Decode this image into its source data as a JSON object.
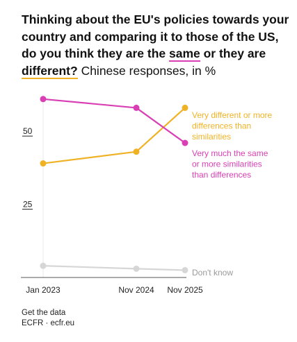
{
  "title": {
    "part1": "Thinking about the EU's policies towards your country and comparing it to those of the US, do you think they are the ",
    "same": "same",
    "or_they_are": " or they are ",
    "different": "different?",
    "subtitle": " Chinese responses, in %"
  },
  "footer": {
    "get_data": "Get the data",
    "source": "ECFR · ecfr.eu"
  },
  "colors": {
    "different": "#f0b225",
    "same": "#d93fb4",
    "dont_know": "#d6d6d6"
  },
  "chart_data": {
    "type": "line",
    "categories": [
      "Jan 2023",
      "Nov 2024",
      "Nov 2025"
    ],
    "ylim": [
      0,
      60
    ],
    "yticks": [
      25,
      50
    ],
    "grid": false,
    "legend": "direct labels at line ends",
    "series": [
      {
        "name": "Very different or more differences than similarities",
        "label_lines": [
          "Very different or more",
          "differences than",
          "similarities"
        ],
        "color": "#f0b225",
        "values": [
          39,
          43,
          58
        ]
      },
      {
        "name": "Very much the same or more similarities than differences",
        "label_lines": [
          "Very much the same",
          "or more similarities",
          "than differences"
        ],
        "color": "#d93fb4",
        "values": [
          61,
          58,
          46
        ]
      },
      {
        "name": "Don't know",
        "label_lines": [
          "Don't know"
        ],
        "color": "#d6d6d6",
        "values": [
          4,
          3,
          2.5
        ]
      }
    ]
  }
}
